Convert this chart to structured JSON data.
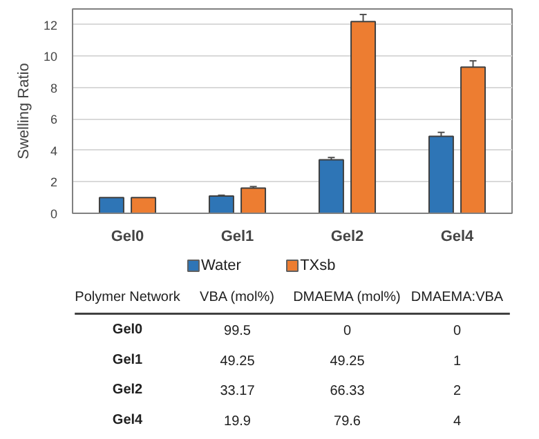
{
  "chart_data": [
    {
      "type": "bar",
      "ylabel": "Swelling Ratio",
      "categories": [
        "Gel0",
        "Gel1",
        "Gel2",
        "Gel4"
      ],
      "series": [
        {
          "name": "Water",
          "color": "#2e75b6",
          "values": [
            1.0,
            1.1,
            3.4,
            4.9
          ],
          "errors": [
            null,
            0.05,
            0.15,
            0.25
          ]
        },
        {
          "name": "TXsb",
          "color": "#ed7d31",
          "values": [
            1.0,
            1.6,
            12.2,
            9.3
          ],
          "errors": [
            null,
            0.1,
            0.45,
            0.4
          ]
        }
      ],
      "ylim": [
        0,
        13
      ],
      "yticks": [
        0,
        2,
        4,
        6,
        8,
        10,
        12
      ],
      "grid": "y",
      "legend": "bottom"
    },
    {
      "type": "other",
      "categories": [
        "Polymer Network",
        "VBA (mol%)",
        "DMAEMA (mol%)",
        "DMAEMA:VBA"
      ],
      "y_categories": [
        "Gel0",
        "Gel1",
        "Gel2",
        "Gel4"
      ],
      "cell_labels": [
        [
          "99.5",
          "0",
          "0"
        ],
        [
          "49.25",
          "49.25",
          "1"
        ],
        [
          "33.17",
          "66.33",
          "2"
        ],
        [
          "19.9",
          "79.6",
          "4"
        ]
      ]
    }
  ]
}
